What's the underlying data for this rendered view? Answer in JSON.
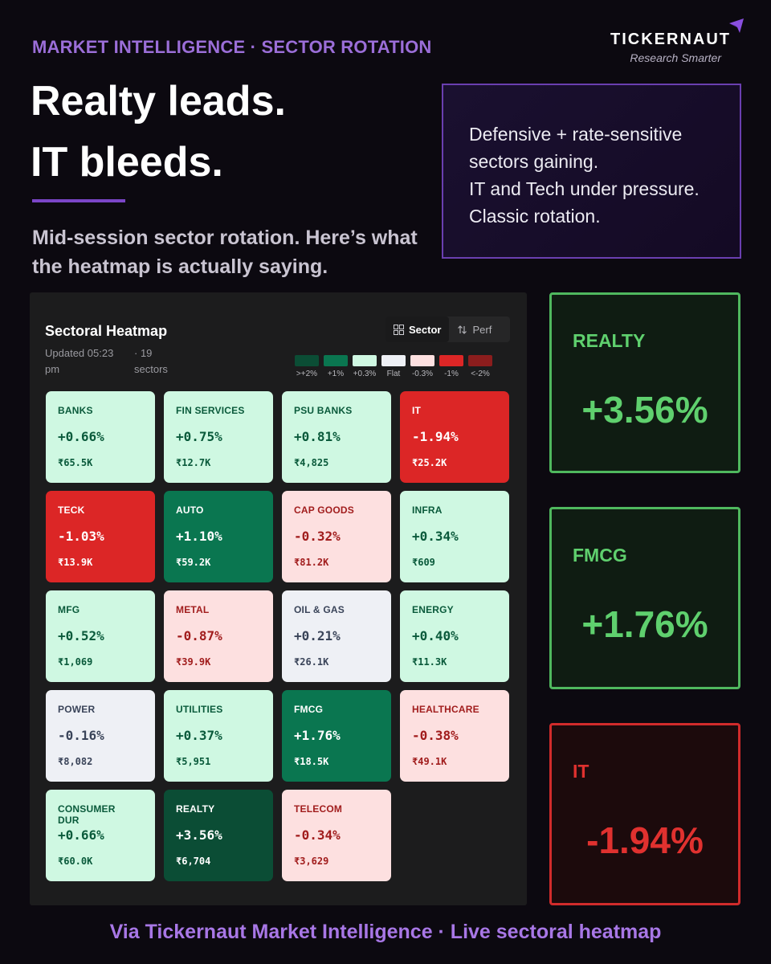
{
  "header": {
    "kicker": "MARKET INTELLIGENCE · SECTOR ROTATION",
    "headline_line1": "Realty leads.",
    "headline_line2": "IT bleeds.",
    "subhead": "Mid-session sector rotation. Here’s what the heatmap is actually saying."
  },
  "brand": {
    "name": "TICKERNAUT",
    "tagline": "Research Smarter"
  },
  "callout": {
    "lines": [
      "Defensive + rate-sensitive",
      "sectors gaining.",
      "IT and Tech under pressure.",
      "Classic rotation."
    ]
  },
  "heatmap": {
    "title": "Sectoral Heatmap",
    "updated": "Updated 05:23 pm",
    "count": "· 19 sectors",
    "toggle_sector": "Sector",
    "toggle_perf": "Perf",
    "legend": [
      {
        "label": ">+2%",
        "color": "#0b4d35"
      },
      {
        "label": "+1%",
        "color": "#0a7650"
      },
      {
        "label": "+0.3%",
        "color": "#cff8e2"
      },
      {
        "label": "Flat",
        "color": "#eef0f5"
      },
      {
        "label": "-0.3%",
        "color": "#fde0e0"
      },
      {
        "label": "-1%",
        "color": "#dc2626"
      },
      {
        "label": "<-2%",
        "color": "#8b1d1d"
      }
    ],
    "tiles": [
      {
        "name": "BANKS",
        "pct": "+0.66%",
        "val": "₹65.5K",
        "bg": "#cff8e2",
        "fg": "#0a5a3b"
      },
      {
        "name": "FIN SERVICES",
        "pct": "+0.75%",
        "val": "₹12.7K",
        "bg": "#cff8e2",
        "fg": "#0a5a3b"
      },
      {
        "name": "PSU BANKS",
        "pct": "+0.81%",
        "val": "₹4,825",
        "bg": "#cff8e2",
        "fg": "#0a5a3b"
      },
      {
        "name": "IT",
        "pct": "-1.94%",
        "val": "₹25.2K",
        "bg": "#dc2626",
        "fg": "#ffffff"
      },
      {
        "name": "TECK",
        "pct": "-1.03%",
        "val": "₹13.9K",
        "bg": "#dc2626",
        "fg": "#ffffff"
      },
      {
        "name": "AUTO",
        "pct": "+1.10%",
        "val": "₹59.2K",
        "bg": "#0a7650",
        "fg": "#ffffff"
      },
      {
        "name": "CAP GOODS",
        "pct": "-0.32%",
        "val": "₹81.2K",
        "bg": "#fde0e0",
        "fg": "#a11d1d"
      },
      {
        "name": "INFRA",
        "pct": "+0.34%",
        "val": "₹609",
        "bg": "#cff8e2",
        "fg": "#0a5a3b"
      },
      {
        "name": "MFG",
        "pct": "+0.52%",
        "val": "₹1,069",
        "bg": "#cff8e2",
        "fg": "#0a5a3b"
      },
      {
        "name": "METAL",
        "pct": "-0.87%",
        "val": "₹39.9K",
        "bg": "#fde0e0",
        "fg": "#a11d1d"
      },
      {
        "name": "OIL & GAS",
        "pct": "+0.21%",
        "val": "₹26.1K",
        "bg": "#eef0f5",
        "fg": "#3a4459"
      },
      {
        "name": "ENERGY",
        "pct": "+0.40%",
        "val": "₹11.3K",
        "bg": "#cff8e2",
        "fg": "#0a5a3b"
      },
      {
        "name": "POWER",
        "pct": "-0.16%",
        "val": "₹8,082",
        "bg": "#eef0f5",
        "fg": "#3a4459"
      },
      {
        "name": "UTILITIES",
        "pct": "+0.37%",
        "val": "₹5,951",
        "bg": "#cff8e2",
        "fg": "#0a5a3b"
      },
      {
        "name": "FMCG",
        "pct": "+1.76%",
        "val": "₹18.5K",
        "bg": "#0a7650",
        "fg": "#ffffff"
      },
      {
        "name": "HEALTHCARE",
        "pct": "-0.38%",
        "val": "₹49.1K",
        "bg": "#fde0e0",
        "fg": "#a11d1d"
      },
      {
        "name": "CONSUMER DUR",
        "pct": "+0.66%",
        "val": "₹60.0K",
        "bg": "#cff8e2",
        "fg": "#0a5a3b"
      },
      {
        "name": "REALTY",
        "pct": "+3.56%",
        "val": "₹6,704",
        "bg": "#0b4d35",
        "fg": "#ffffff"
      },
      {
        "name": "TELECOM",
        "pct": "-0.34%",
        "val": "₹3,629",
        "bg": "#fde0e0",
        "fg": "#a11d1d"
      }
    ]
  },
  "highlights": [
    {
      "name": "REALTY",
      "value": "+3.56%",
      "border": "#4fb85e",
      "bg": "#0f1c12",
      "color": "#5fd06e"
    },
    {
      "name": "FMCG",
      "value": "+1.76%",
      "border": "#4fb85e",
      "bg": "#0f1c12",
      "color": "#5fd06e"
    },
    {
      "name": "IT",
      "value": "-1.94%",
      "border": "#d12b2b",
      "bg": "#1c0a0c",
      "color": "#e0312f"
    }
  ],
  "footer": "Via Tickernaut Market Intelligence · Live sectoral heatmap"
}
